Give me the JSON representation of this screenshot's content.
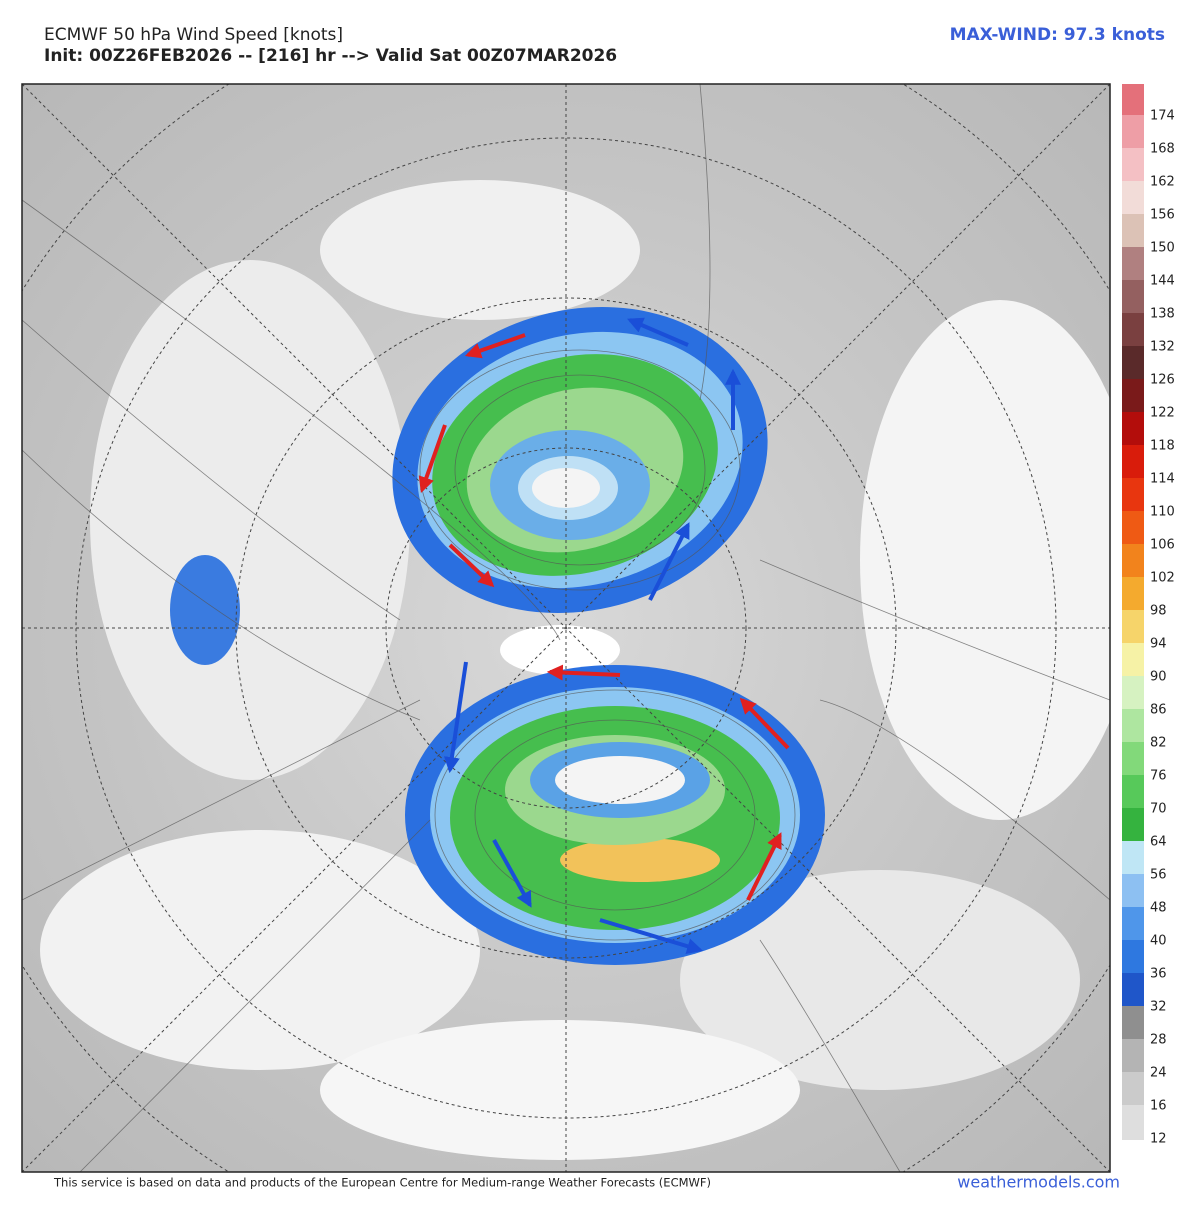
{
  "header": {
    "title": "ECMWF 50 hPa Wind Speed [knots]",
    "subtitle": "Init: 00Z26FEB2026 -- [216] hr --> Valid Sat 00Z07MAR2026",
    "max_wind": "MAX-WIND: 97.3 knots"
  },
  "colorbar": {
    "labels": [
      12,
      16,
      24,
      28,
      32,
      36,
      40,
      48,
      56,
      64,
      70,
      76,
      82,
      86,
      90,
      94,
      98,
      102,
      106,
      110,
      114,
      118,
      122,
      126,
      132,
      138,
      144,
      150,
      156,
      162,
      168,
      174
    ],
    "colors": [
      "#dedede",
      "#cbcbcb",
      "#b4b4b4",
      "#8f8f8f",
      "#1f56c9",
      "#2e78e0",
      "#4f96ea",
      "#8dc0f2",
      "#bfe6f5",
      "#35b33f",
      "#57c95a",
      "#82d97a",
      "#aee6a0",
      "#d6f2c1",
      "#f6f2a6",
      "#f6d46a",
      "#f4aa2e",
      "#f2831c",
      "#ef5a14",
      "#e8360f",
      "#d91c0b",
      "#b30d0b",
      "#7a1a1a",
      "#5a2a2a",
      "#7a4040",
      "#946060",
      "#b08080",
      "#dcc2b6",
      "#f2dcd8",
      "#f4c0c4",
      "#ee9ea6",
      "#e4707a"
    ]
  },
  "footer": {
    "notice": "This service is based on data and products of the European Centre for Medium-range Weather Forecasts (ECMWF)",
    "site": "weathermodels.com"
  }
}
